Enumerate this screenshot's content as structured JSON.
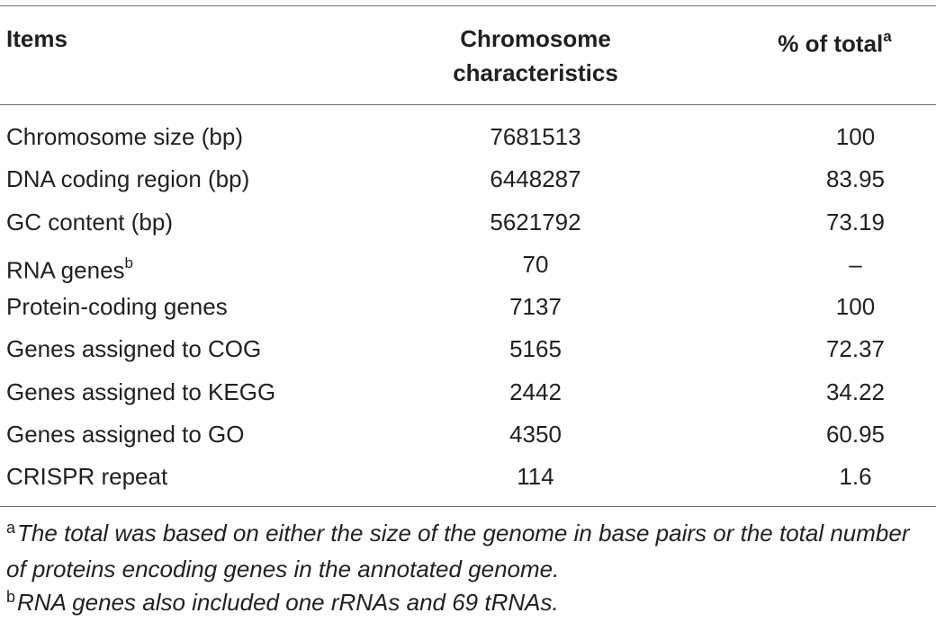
{
  "table": {
    "headers": {
      "items": "Items",
      "characteristics_line1": "Chromosome",
      "characteristics_line2": "characteristics",
      "percent": "% of total",
      "percent_mark": "a"
    },
    "rows": [
      {
        "item": "Chromosome size (bp)",
        "mark": "",
        "value": "7681513",
        "percent": "100"
      },
      {
        "item": "DNA coding region (bp)",
        "mark": "",
        "value": "6448287",
        "percent": "83.95"
      },
      {
        "item": "GC content (bp)",
        "mark": "",
        "value": "5621792",
        "percent": "73.19"
      },
      {
        "item": "RNA genes",
        "mark": "b",
        "value": "70",
        "percent": "–"
      },
      {
        "item": "Protein-coding genes",
        "mark": "",
        "value": "7137",
        "percent": "100"
      },
      {
        "item": "Genes assigned to COG",
        "mark": "",
        "value": "5165",
        "percent": "72.37"
      },
      {
        "item": "Genes assigned to KEGG",
        "mark": "",
        "value": "2442",
        "percent": "34.22"
      },
      {
        "item": "Genes assigned to GO",
        "mark": "",
        "value": "4350",
        "percent": "60.95"
      },
      {
        "item": "CRISPR repeat",
        "mark": "",
        "value": "114",
        "percent": "1.6"
      }
    ]
  },
  "footnotes": {
    "a_mark": "a",
    "a_text": "The total was based on either the size of the genome in base pairs or the total number of proteins encoding genes in the annotated genome.",
    "b_mark": "b",
    "b_text": "RNA genes also included one rRNAs and 69 tRNAs."
  }
}
